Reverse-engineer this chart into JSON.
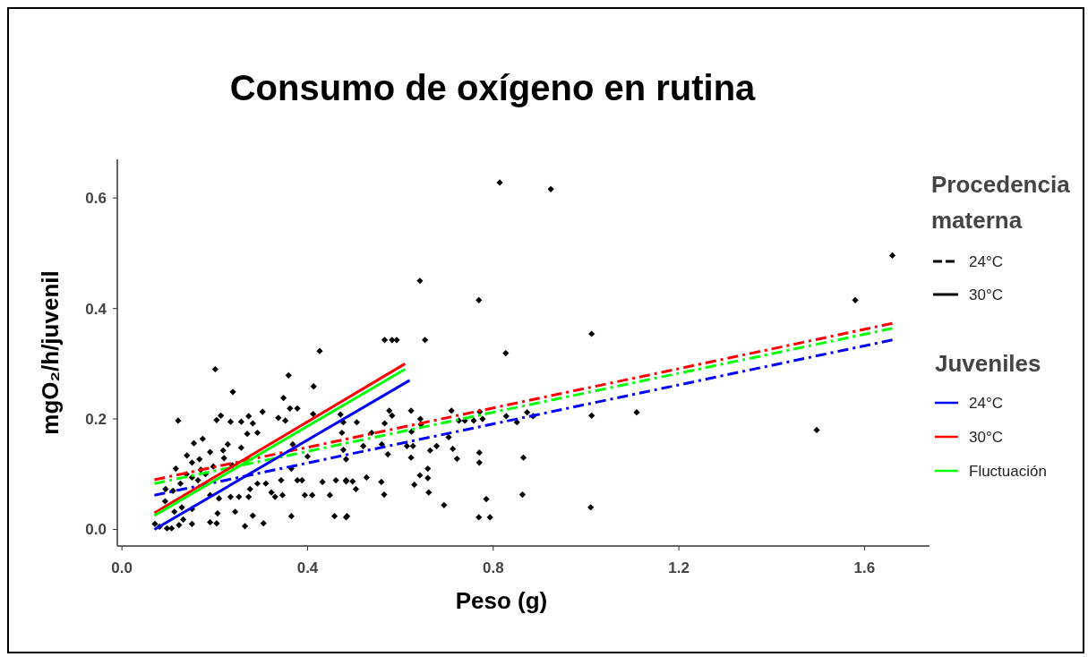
{
  "chart_data": {
    "type": "scatter",
    "title": "Consumo de oxígeno en rutina",
    "xlabel": "Peso (g)",
    "ylabel": "mgO₂/h/juvenil",
    "xlim": [
      -0.01,
      1.74
    ],
    "xticks": [
      {
        "value": 0,
        "label": "0.0"
      },
      0.4,
      0.8,
      1.2,
      1.6
    ],
    "ylim": [
      -0.03,
      0.67
    ],
    "yticks": [
      {
        "value": 0,
        "label": "0.0"
      },
      0.2,
      0.4,
      0.6
    ],
    "grid": false,
    "legend": "right",
    "legend_title": "Juveniles",
    "marker": "diamond",
    "annotations": [
      "Procedencia materna",
      "24°C",
      "30°C"
    ],
    "series": [
      {
        "color": "#000000",
        "x": [
          0.121,
          0.14,
          0.155,
          0.174,
          0.201,
          0.204,
          0.213,
          0.239,
          0.234,
          0.257,
          0.273,
          0.282,
          0.303,
          0.292,
          0.27,
          0.257,
          0.218,
          0.228,
          0.22,
          0.197,
          0.238,
          0.359,
          0.348,
          0.337,
          0.352,
          0.362,
          0.378,
          0.426,
          0.413,
          0.412,
          0.368,
          0.365,
          0.343,
          0.33,
          0.346,
          0.322,
          0.31,
          0.292,
          0.276,
          0.273,
          0.282,
          0.265,
          0.305,
          0.365,
          0.244,
          0.234,
          0.252,
          0.209,
          0.206,
          0.19,
          0.204,
          0.19,
          0.18,
          0.164,
          0.151,
          0.167,
          0.151,
          0.139,
          0.126,
          0.116,
          0.11,
          0.094,
          0.093,
          0.113,
          0.129,
          0.151,
          0.132,
          0.151,
          0.123,
          0.107,
          0.097,
          0.081,
          0.071,
          0.17,
          0.19,
          0.432,
          0.461,
          0.483,
          0.448,
          0.458,
          0.485,
          0.394,
          0.41,
          0.4,
          0.477,
          0.474,
          0.471,
          0.378,
          0.388,
          0.814,
          0.924,
          0.642,
          0.769,
          0.566,
          0.582,
          0.592,
          0.653,
          0.827,
          1.012,
          1.012,
          1.01,
          0.576,
          0.582,
          0.623,
          0.643,
          0.644,
          0.624,
          0.566,
          0.477,
          0.506,
          0.538,
          0.71,
          0.726,
          0.739,
          0.758,
          0.771,
          0.777,
          0.828,
          0.851,
          0.873,
          0.886,
          0.704,
          0.56,
          0.52,
          0.573,
          0.614,
          0.627,
          0.623,
          0.664,
          0.678,
          0.713,
          0.722,
          0.77,
          0.77,
          0.865,
          0.483,
          0.659,
          0.642,
          0.659,
          0.63,
          0.661,
          0.483,
          0.497,
          0.504,
          0.527,
          0.559,
          0.565,
          0.694,
          0.785,
          0.769,
          0.793,
          0.863,
          0.483,
          1.109,
          1.497,
          1.58,
          1.66
        ],
        "values": [
          0.197,
          0.134,
          0.156,
          0.164,
          0.29,
          0.198,
          0.206,
          0.249,
          0.195,
          0.195,
          0.205,
          0.192,
          0.213,
          0.175,
          0.173,
          0.148,
          0.143,
          0.154,
          0.129,
          0.114,
          0.116,
          0.279,
          0.238,
          0.202,
          0.197,
          0.219,
          0.219,
          0.323,
          0.259,
          0.209,
          0.154,
          0.11,
          0.089,
          0.059,
          0.062,
          0.067,
          0.083,
          0.083,
          0.073,
          0.059,
          0.025,
          0.006,
          0.011,
          0.024,
          0.032,
          0.059,
          0.059,
          0.056,
          0.029,
          0.013,
          0.011,
          0.062,
          0.1,
          0.089,
          0.094,
          0.127,
          0.121,
          0.1,
          0.083,
          0.11,
          0.07,
          0.073,
          0.051,
          0.032,
          0.04,
          0.037,
          0.018,
          0.01,
          0.008,
          0.002,
          0.002,
          0.005,
          0.01,
          0.108,
          0.14,
          0.086,
          0.089,
          0.089,
          0.062,
          0.024,
          0.024,
          0.062,
          0.062,
          0.132,
          0.144,
          0.175,
          0.208,
          0.089,
          0.089,
          0.628,
          0.616,
          0.45,
          0.415,
          0.343,
          0.343,
          0.343,
          0.343,
          0.319,
          0.354,
          0.206,
          0.04,
          0.215,
          0.206,
          0.215,
          0.2,
          0.19,
          0.177,
          0.192,
          0.194,
          0.194,
          0.175,
          0.215,
          0.197,
          0.197,
          0.197,
          0.213,
          0.2,
          0.205,
          0.194,
          0.212,
          0.205,
          0.167,
          0.154,
          0.151,
          0.136,
          0.151,
          0.151,
          0.13,
          0.143,
          0.151,
          0.146,
          0.128,
          0.139,
          0.121,
          0.13,
          0.127,
          0.11,
          0.098,
          0.093,
          0.081,
          0.067,
          0.087,
          0.087,
          0.073,
          0.094,
          0.086,
          0.063,
          0.044,
          0.055,
          0.022,
          0.022,
          0.063,
          0.022,
          0.212,
          0.18,
          0.415,
          0.496
        ]
      },
      {
        "type": "line",
        "color": "#0000ff",
        "line_style": "dashed",
        "marker": "none",
        "x": [
          0.07,
          1.66
        ],
        "values": [
          0.062,
          0.343
        ]
      },
      {
        "type": "line",
        "color": "#ff0000",
        "line_style": "dashed",
        "marker": "none",
        "x": [
          0.07,
          1.66
        ],
        "values": [
          0.09,
          0.373
        ]
      },
      {
        "type": "line",
        "color": "#00ff00",
        "line_style": "dashed",
        "marker": "none",
        "x": [
          0.07,
          1.66
        ],
        "values": [
          0.083,
          0.364
        ]
      },
      {
        "type": "line",
        "name": "24°C",
        "color": "#0000ff",
        "line_style": "solid",
        "marker": "none",
        "x": [
          0.07,
          0.62
        ],
        "values": [
          0.0,
          0.27
        ]
      },
      {
        "type": "line",
        "name": "30°C",
        "color": "#ff0000",
        "line_style": "solid",
        "marker": "none",
        "x": [
          0.07,
          0.61
        ],
        "values": [
          0.03,
          0.3
        ]
      },
      {
        "type": "line",
        "name": "Fluctuación",
        "color": "#00ff00",
        "line_style": "solid",
        "marker": "none",
        "x": [
          0.07,
          0.61
        ],
        "values": [
          0.025,
          0.29
        ]
      }
    ]
  }
}
